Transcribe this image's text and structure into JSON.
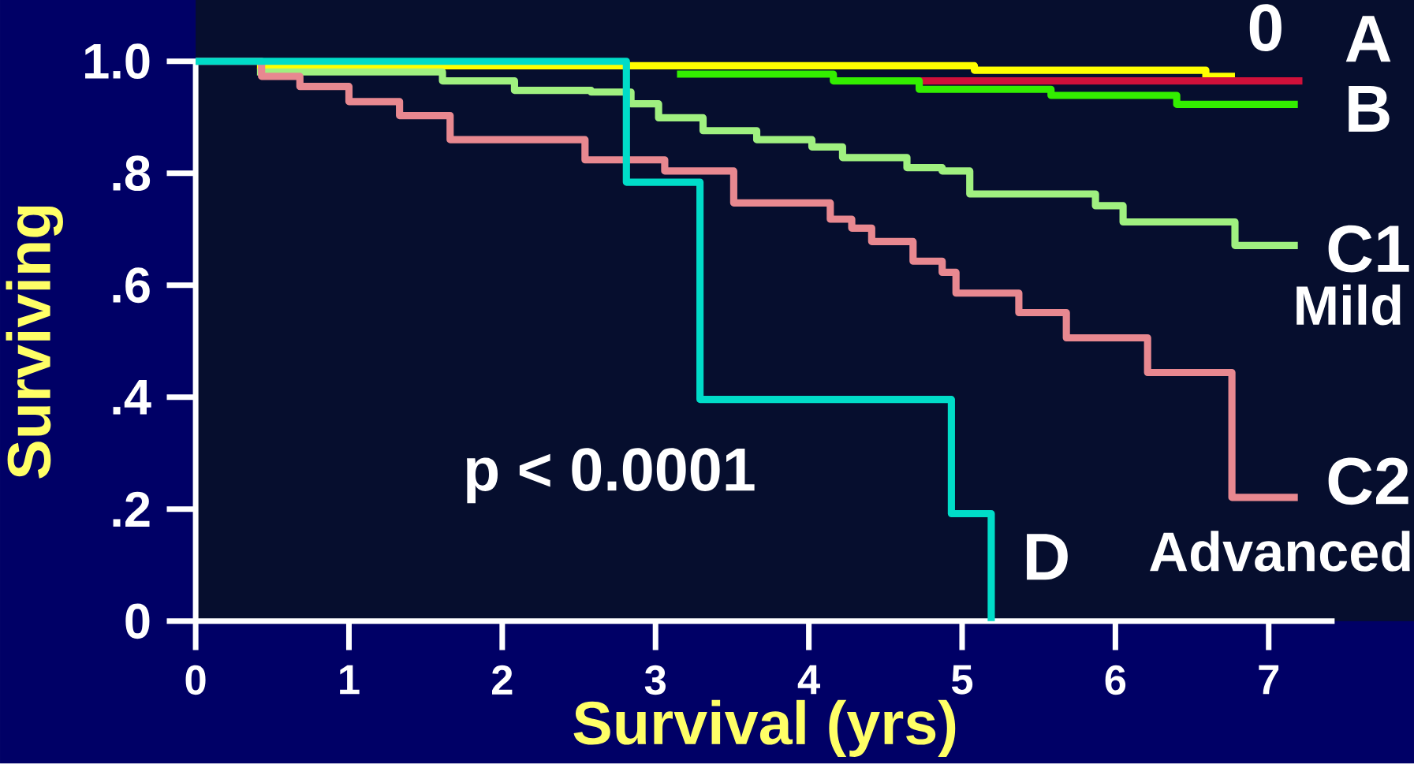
{
  "chart_data": {
    "type": "step",
    "xlabel": "Survival (yrs)",
    "ylabel": "Surviving",
    "xlim": [
      0,
      7.43
    ],
    "xticks": [
      0,
      1,
      2,
      3,
      4,
      5,
      6,
      7
    ],
    "ylim": [
      0,
      1
    ],
    "yticks": [
      {
        "value": 1,
        "label": "1.0"
      },
      {
        "value": 0.8,
        "label": ".8"
      },
      {
        "value": 0.6,
        "label": ".6"
      },
      {
        "value": 0.4,
        "label": ".4"
      },
      {
        "value": 0.2,
        "label": ".2"
      },
      0
    ],
    "grid": false,
    "legend": false,
    "marker": "none",
    "line_style": "solid",
    "series": [
      {
        "name": "0",
        "color": "#ffff00",
        "x": [
          0.4,
          5.08,
          6.59,
          6.78
        ],
        "values": [
          0.992,
          0.984,
          0.973,
          0.973
        ]
      },
      {
        "name": "A",
        "color": "#d0103a",
        "x": [
          4.72,
          7.22
        ],
        "values": [
          0.965,
          0.965
        ]
      },
      {
        "name": "B",
        "color": "#33ee00",
        "x": [
          3.14,
          4.16,
          4.72,
          5.58,
          6.4,
          7.19
        ],
        "values": [
          0.977,
          0.965,
          0.95,
          0.939,
          0.923,
          0.923
        ]
      },
      {
        "name": "C1",
        "color": "#a0f080",
        "x": [
          0.4,
          1.61,
          2.08,
          2.58,
          2.84,
          3.02,
          3.31,
          3.66,
          4.02,
          4.22,
          4.64,
          4.87,
          5.05,
          5.87,
          6.05,
          6.78,
          7.19
        ],
        "values": [
          0.981,
          0.965,
          0.948,
          0.945,
          0.924,
          0.899,
          0.876,
          0.86,
          0.847,
          0.828,
          0.81,
          0.804,
          0.763,
          0.742,
          0.713,
          0.671,
          0.671
        ]
      },
      {
        "name": "C2",
        "color": "#e88890",
        "x": [
          0,
          0.43,
          0.68,
          1.0,
          1.33,
          1.66,
          2.54,
          3.06,
          3.51,
          4.14,
          4.28,
          4.41,
          4.68,
          4.87,
          4.96,
          5.37,
          5.68,
          6.21,
          6.76,
          7.19
        ],
        "values": [
          1,
          0.973,
          0.955,
          0.928,
          0.903,
          0.86,
          0.824,
          0.804,
          0.747,
          0.718,
          0.702,
          0.678,
          0.643,
          0.623,
          0.586,
          0.551,
          0.506,
          0.444,
          0.221,
          0.221
        ]
      },
      {
        "name": "D",
        "color": "#00dcc8",
        "x": [
          0,
          2.81,
          3.29,
          4.93,
          5.19
        ],
        "values": [
          1,
          0.784,
          0.396,
          0.192,
          0
        ]
      }
    ],
    "annotations": [
      "p < 0.0001",
      "Mild",
      "Advanced"
    ]
  }
}
